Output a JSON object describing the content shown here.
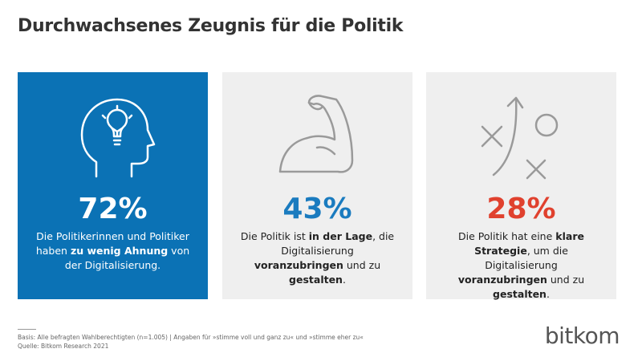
{
  "header": {
    "title": "Durchwachsenes Zeugnis für die Politik"
  },
  "cards": [
    {
      "figure": "72%",
      "figure_color": "#ffffff",
      "background": "#0b72b5",
      "text_color": "#ffffff",
      "description": [
        {
          "text": "Die Politikerinnen und Politiker haben ",
          "bold": false
        },
        {
          "text": "zu wenig Ahnung",
          "bold": true
        },
        {
          "text": " von der Digitalisierung.",
          "bold": false
        }
      ]
    },
    {
      "figure": "43%",
      "figure_color": "#1a7bbf",
      "background": "#efefef",
      "text_color": "#222222",
      "description": [
        {
          "text": "Die Politik ist ",
          "bold": false
        },
        {
          "text": "in der Lage",
          "bold": true
        },
        {
          "text": ", die Digitalisierung ",
          "bold": false
        },
        {
          "text": "voranzubringen",
          "bold": true
        },
        {
          "text": " und zu ",
          "bold": false
        },
        {
          "text": "gestalten",
          "bold": true
        },
        {
          "text": ".",
          "bold": false
        }
      ]
    },
    {
      "figure": "28%",
      "figure_color": "#e0412e",
      "background": "#efefef",
      "text_color": "#222222",
      "description": [
        {
          "text": "Die Politik hat eine ",
          "bold": false
        },
        {
          "text": "klare Strategie",
          "bold": true
        },
        {
          "text": ", um die Digitalisierung ",
          "bold": false
        },
        {
          "text": "voranzubringen",
          "bold": true
        },
        {
          "text": " und zu ",
          "bold": false
        },
        {
          "text": "gestalten",
          "bold": true
        },
        {
          "text": ".",
          "bold": false
        }
      ]
    }
  ],
  "footer": {
    "basis": "Basis: Alle befragten Wahlberechtigten (n=1.005) | Angaben für »stimme voll und ganz zu« und »stimme eher zu«",
    "source": "Quelle: Bitkom Research 2021",
    "logo": "bitkom"
  }
}
